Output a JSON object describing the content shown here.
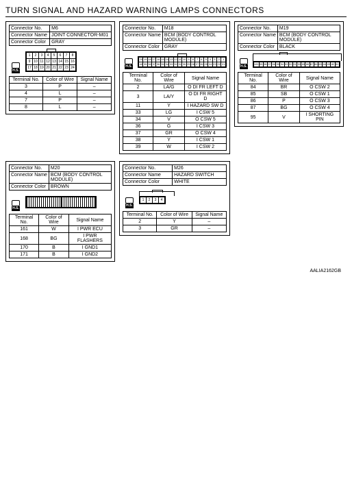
{
  "title": "TURN SIGNAL AND HAZARD WARNING LAMPS CONNECTORS",
  "footer_code": "AALIA2162GB",
  "labels": {
    "connector_no": "Connector No.",
    "connector_name": "Connector Name",
    "connector_color": "Connector Color",
    "hs": "H.S.",
    "terminal_no": "Terminal No.",
    "color_of_wire": "Color of Wire",
    "signal_name": "Signal Name"
  },
  "blocks": {
    "m6": {
      "no": "M6",
      "name": "JOINT CONNECTOR-M01",
      "color": "GRAY",
      "grid": [
        [
          "1",
          "2",
          "3",
          "4",
          "5",
          "6",
          "7",
          "8"
        ],
        [
          "9",
          "10",
          "11",
          "12",
          "13",
          "14",
          "15",
          "16"
        ],
        [
          "17",
          "18",
          "19",
          "20",
          "21",
          "22",
          "23",
          "24"
        ]
      ],
      "pins": [
        {
          "t": "3",
          "c": "P",
          "s": "–"
        },
        {
          "t": "4",
          "c": "L",
          "s": "–"
        },
        {
          "t": "7",
          "c": "P",
          "s": "–"
        },
        {
          "t": "8",
          "c": "L",
          "s": "–"
        }
      ]
    },
    "m18": {
      "no": "M18",
      "name": "BCM (BODY CONTROL MODULE)",
      "color": "GRAY",
      "grid": [
        [
          "20",
          "19",
          "18",
          "17",
          "16",
          "15",
          "14",
          "13",
          "12",
          "11",
          "10",
          "9",
          "8",
          "7",
          "6",
          "5",
          "4",
          "3",
          "2",
          "1"
        ],
        [
          "40",
          "39",
          "38",
          "37",
          "36",
          "35",
          "34",
          "33",
          "32",
          "31",
          "30",
          "29",
          "28",
          "27",
          "26",
          "25",
          "24",
          "23",
          "22",
          "21"
        ]
      ],
      "pins": [
        {
          "t": "2",
          "c": "LA/G",
          "s": "O DI FR LEFT D"
        },
        {
          "t": "3",
          "c": "LA/Y",
          "s": "O DI FR RIGHT D"
        },
        {
          "t": "11",
          "c": "Y",
          "s": "I HAZARD SW D"
        },
        {
          "t": "33",
          "c": "LG",
          "s": "I CSW 5"
        },
        {
          "t": "34",
          "c": "V",
          "s": "O CSW 5"
        },
        {
          "t": "36",
          "c": "G",
          "s": "I CSW 3"
        },
        {
          "t": "37",
          "c": "GR",
          "s": "O CSW 4"
        },
        {
          "t": "38",
          "c": "Y",
          "s": "I CSW 1"
        },
        {
          "t": "39",
          "c": "W",
          "s": "I CSW 2"
        }
      ]
    },
    "m19": {
      "no": "M19",
      "name": "BCM (BODY CONTROL MODULE)",
      "color": "BLACK",
      "grid": [
        [
          "100",
          "99",
          "98",
          "97",
          "96",
          "95",
          "94",
          "93",
          "92",
          "91",
          "90",
          "89",
          "88",
          "87",
          "86",
          "85",
          "84",
          "83",
          "82",
          "81"
        ]
      ],
      "pins": [
        {
          "t": "84",
          "c": "BR",
          "s": "O CSW 2"
        },
        {
          "t": "85",
          "c": "SB",
          "s": "O CSW 1"
        },
        {
          "t": "86",
          "c": "P",
          "s": "O CSW 3"
        },
        {
          "t": "87",
          "c": "BG",
          "s": "O CSW 4"
        },
        {
          "t": "95",
          "c": "V",
          "s": "I SHORTING PIN"
        }
      ]
    },
    "m20": {
      "no": "M20",
      "name": "BCM (BODY CONTROL MODULE)",
      "color": "BROWN",
      "pins": [
        {
          "t": "161",
          "c": "W",
          "s": "I PWR ECU"
        },
        {
          "t": "168",
          "c": "BG",
          "s": "I PWR FLASHERS"
        },
        {
          "t": "170",
          "c": "B",
          "s": "I GND1"
        },
        {
          "t": "171",
          "c": "B",
          "s": "I GND2"
        }
      ]
    },
    "m26": {
      "no": "M26",
      "name": "HAZARD SWITCH",
      "color": "WHITE",
      "grid": [
        [
          "1",
          "2",
          "3",
          "4"
        ]
      ],
      "pins": [
        {
          "t": "2",
          "c": "Y",
          "s": "–"
        },
        {
          "t": "3",
          "c": "GR",
          "s": "–"
        }
      ]
    }
  }
}
